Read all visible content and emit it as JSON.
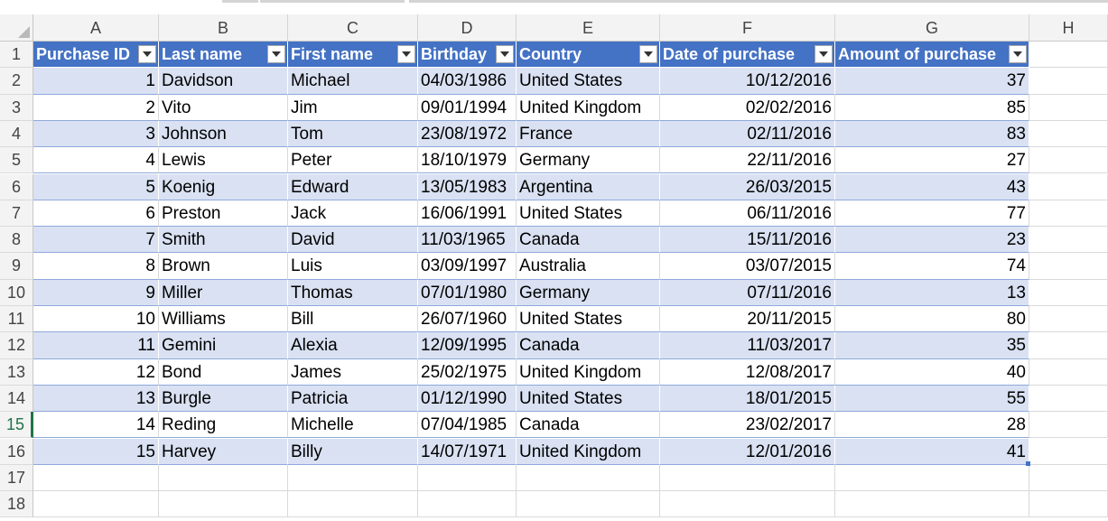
{
  "columns": [
    "A",
    "B",
    "C",
    "D",
    "E",
    "F",
    "G",
    "H"
  ],
  "rows": [
    "1",
    "2",
    "3",
    "4",
    "5",
    "6",
    "7",
    "8",
    "9",
    "10",
    "11",
    "12",
    "13",
    "14",
    "15",
    "16",
    "17",
    "18"
  ],
  "table": {
    "headers": [
      "Purchase ID",
      "Last name",
      "First name",
      "Birthday",
      "Country",
      "Date of purchase",
      "Amount of purchase"
    ],
    "records": [
      [
        "1",
        "Davidson",
        "Michael",
        "04/03/1986",
        "United States",
        "10/12/2016",
        "37"
      ],
      [
        "2",
        "Vito",
        "Jim",
        "09/01/1994",
        "United Kingdom",
        "02/02/2016",
        "85"
      ],
      [
        "3",
        "Johnson",
        "Tom",
        "23/08/1972",
        "France",
        "02/11/2016",
        "83"
      ],
      [
        "4",
        "Lewis",
        "Peter",
        "18/10/1979",
        "Germany",
        "22/11/2016",
        "27"
      ],
      [
        "5",
        "Koenig",
        "Edward",
        "13/05/1983",
        "Argentina",
        "26/03/2015",
        "43"
      ],
      [
        "6",
        "Preston",
        "Jack",
        "16/06/1991",
        "United States",
        "06/11/2016",
        "77"
      ],
      [
        "7",
        "Smith",
        "David",
        "11/03/1965",
        "Canada",
        "15/11/2016",
        "23"
      ],
      [
        "8",
        "Brown",
        "Luis",
        "03/09/1997",
        "Australia",
        "03/07/2015",
        "74"
      ],
      [
        "9",
        "Miller",
        "Thomas",
        "07/01/1980",
        "Germany",
        "07/11/2016",
        "13"
      ],
      [
        "10",
        "Williams",
        "Bill",
        "26/07/1960",
        "United States",
        "20/11/2015",
        "80"
      ],
      [
        "11",
        "Gemini",
        "Alexia",
        "12/09/1995",
        "Canada",
        "11/03/2017",
        "35"
      ],
      [
        "12",
        "Bond",
        "James",
        "25/02/1975",
        "United Kingdom",
        "12/08/2017",
        "40"
      ],
      [
        "13",
        "Burgle",
        "Patricia",
        "01/12/1990",
        "United States",
        "18/01/2015",
        "55"
      ],
      [
        "14",
        "Reding",
        "Michelle",
        "07/04/1985",
        "Canada",
        "23/02/2017",
        "28"
      ],
      [
        "15",
        "Harvey",
        "Billy",
        "14/07/1971",
        "United Kingdom",
        "12/01/2016",
        "41"
      ]
    ]
  },
  "active_row": "15",
  "colors": {
    "header_fill": "#4472c4",
    "band_fill": "#d9e1f2",
    "active_row_accent": "#217346"
  },
  "icons": {
    "filter": "filter-dropdown-icon",
    "select_all": "select-all-triangle-icon"
  }
}
